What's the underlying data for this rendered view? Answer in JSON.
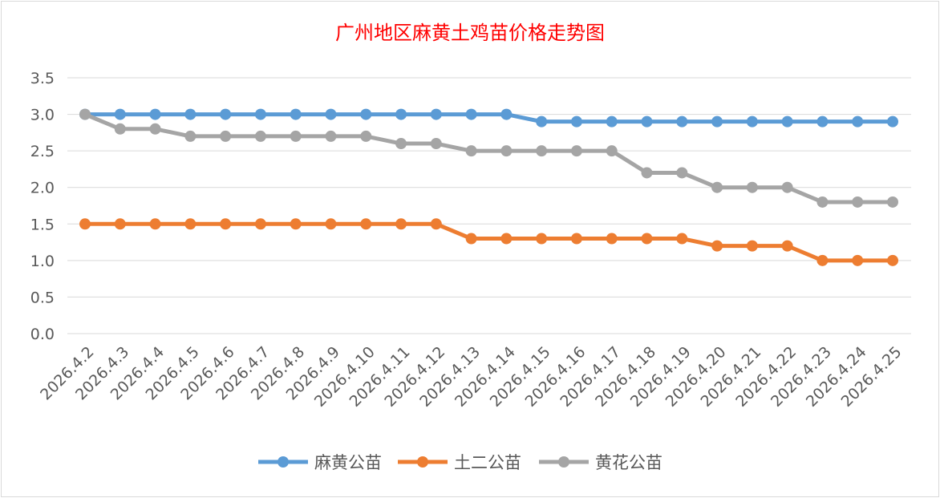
{
  "chart_data": {
    "type": "line",
    "title": "广州地区麻黄土鸡苗价格走势图",
    "title_color": "#ff0000",
    "xlabel": "",
    "ylabel": "",
    "ylim": [
      0,
      3.5
    ],
    "yticks": [
      "0.0",
      "0.5",
      "1.0",
      "1.5",
      "2.0",
      "2.5",
      "3.0",
      "3.5"
    ],
    "grid": true,
    "legend_position": "bottom",
    "categories": [
      "2026.4.2",
      "2026.4.3",
      "2026.4.4",
      "2026.4.5",
      "2026.4.6",
      "2026.4.7",
      "2026.4.8",
      "2026.4.9",
      "2026.4.10",
      "2026.4.11",
      "2026.4.12",
      "2026.4.13",
      "2026.4.14",
      "2026.4.15",
      "2026.4.16",
      "2026.4.17",
      "2026.4.18",
      "2026.4.19",
      "2026.4.20",
      "2026.4.21",
      "2026.4.22",
      "2026.4.23",
      "2026.4.24",
      "2026.4.25"
    ],
    "series": [
      {
        "name": "麻黄公苗",
        "color": "#5b9bd5",
        "values": [
          3.0,
          3.0,
          3.0,
          3.0,
          3.0,
          3.0,
          3.0,
          3.0,
          3.0,
          3.0,
          3.0,
          3.0,
          3.0,
          2.9,
          2.9,
          2.9,
          2.9,
          2.9,
          2.9,
          2.9,
          2.9,
          2.9,
          2.9,
          2.9
        ]
      },
      {
        "name": "土二公苗",
        "color": "#ed7d31",
        "values": [
          1.5,
          1.5,
          1.5,
          1.5,
          1.5,
          1.5,
          1.5,
          1.5,
          1.5,
          1.5,
          1.5,
          1.3,
          1.3,
          1.3,
          1.3,
          1.3,
          1.3,
          1.3,
          1.2,
          1.2,
          1.2,
          1.0,
          1.0,
          1.0
        ]
      },
      {
        "name": "黄花公苗",
        "color": "#a5a5a5",
        "values": [
          3.0,
          2.8,
          2.8,
          2.7,
          2.7,
          2.7,
          2.7,
          2.7,
          2.7,
          2.6,
          2.6,
          2.5,
          2.5,
          2.5,
          2.5,
          2.5,
          2.2,
          2.2,
          2.0,
          2.0,
          2.0,
          1.8,
          1.8,
          1.8
        ]
      }
    ]
  }
}
